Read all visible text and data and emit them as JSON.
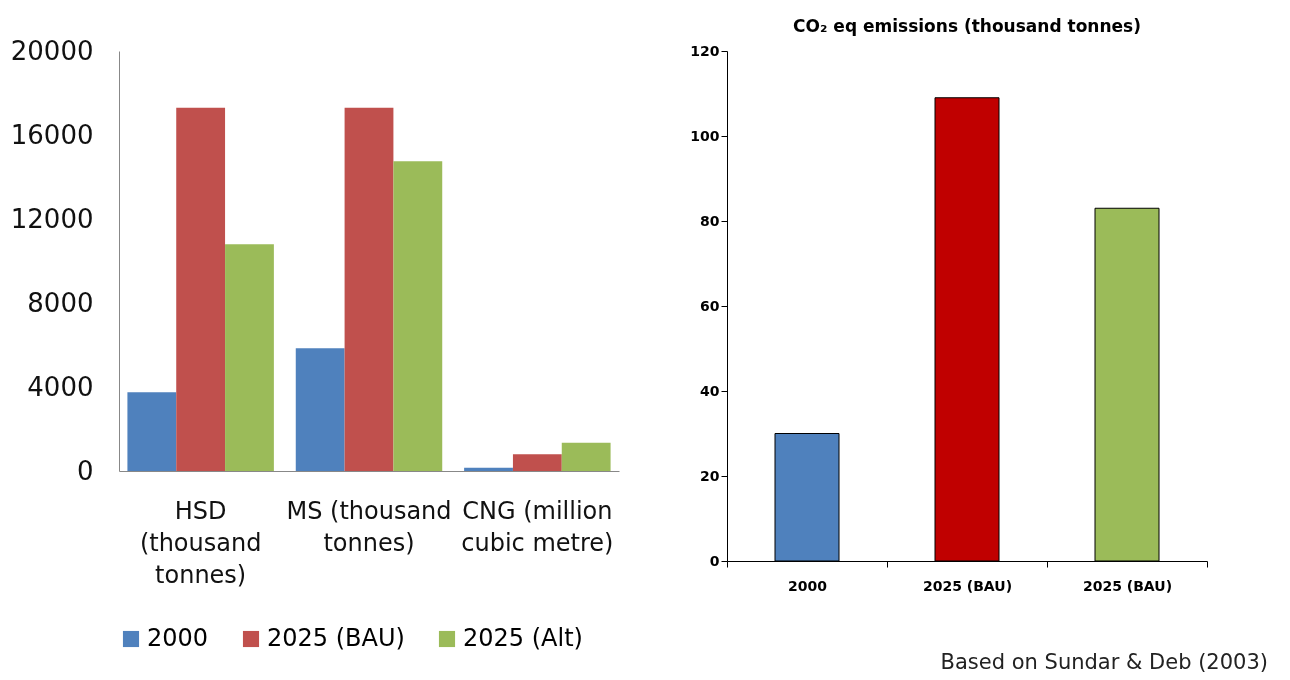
{
  "chart_data": [
    {
      "type": "bar",
      "categories": [
        "HSD (thousand tonnes)",
        "MS (thousand tonnes)",
        "CNG (million cubic metre)"
      ],
      "series": [
        {
          "name": "2000",
          "color": "#4f81bd",
          "values": [
            3750,
            5850,
            150
          ]
        },
        {
          "name": "2025 (BAU)",
          "color": "#c0504d",
          "values": [
            17300,
            17300,
            800
          ]
        },
        {
          "name": "2025 (Alt)",
          "color": "#9bbb59",
          "values": [
            10800,
            14750,
            1350
          ]
        }
      ],
      "ylim": [
        0,
        20000
      ],
      "yticks": [
        0,
        4000,
        8000,
        12000,
        16000,
        20000
      ],
      "legend": "bottom"
    },
    {
      "type": "bar",
      "title": "CO₂ eq emissions (thousand tonnes)",
      "categories": [
        "2000",
        "2025 (BAU)",
        "2025 (BAU)"
      ],
      "values": [
        30,
        109,
        83
      ],
      "colors": [
        "#4f81bd",
        "#c00000",
        "#9bbb59"
      ],
      "ylim": [
        0,
        120
      ],
      "yticks": [
        0,
        20,
        40,
        60,
        80,
        100,
        120
      ],
      "annotations": [
        "Based on Sundar & Deb (2003)"
      ]
    }
  ]
}
